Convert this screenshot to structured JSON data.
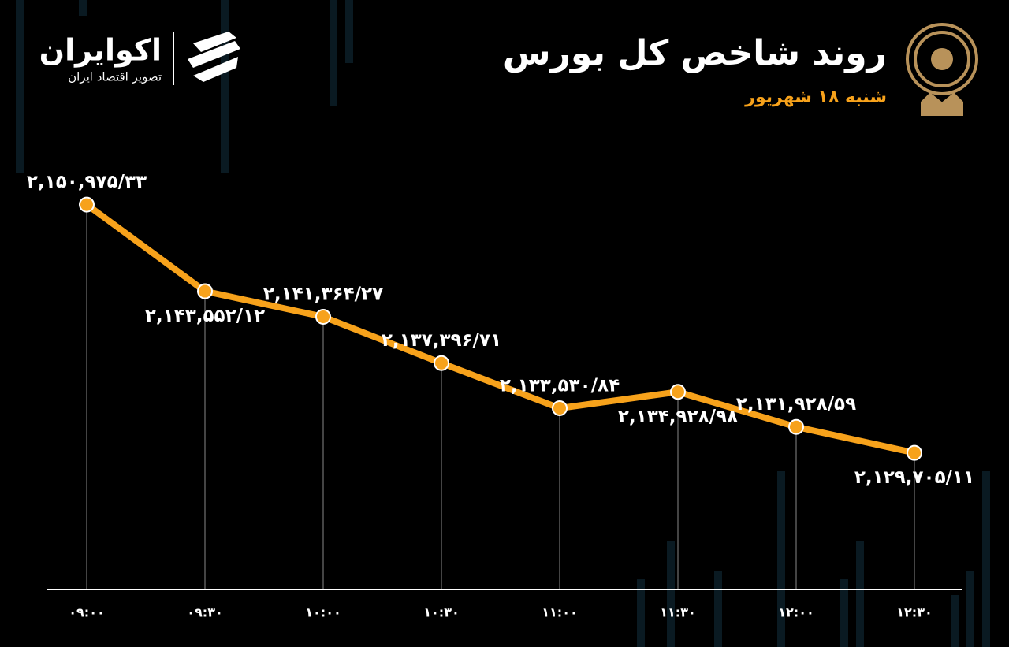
{
  "chart_data": {
    "type": "line",
    "title": "روند شاخص کل بورس",
    "subtitle": "شنبه ۱۸ شهریور",
    "brand": "اکوایران",
    "brand_tagline": "تصویر اقتصاد ایران",
    "categories": [
      "۰۹:۰۰",
      "۰۹:۳۰",
      "۱۰:۰۰",
      "۱۰:۳۰",
      "۱۱:۰۰",
      "۱۱:۳۰",
      "۱۲:۰۰",
      "۱۲:۳۰"
    ],
    "values": [
      2150975.33,
      2143552.12,
      2141364.27,
      2137396.71,
      2133530.84,
      2134928.98,
      2131928.59,
      2129705.11
    ],
    "value_labels": [
      "۲,۱۵۰,۹۷۵/۳۳",
      "۲,۱۴۳,۵۵۲/۱۲",
      "۲,۱۴۱,۳۶۴/۲۷",
      "۲,۱۳۷,۳۹۶/۷۱",
      "۲,۱۳۳,۵۳۰/۸۴",
      "۲,۱۳۴,۹۲۸/۹۸",
      "۲,۱۳۱,۹۲۸/۵۹",
      "۲,۱۲۹,۷۰۵/۱۱"
    ],
    "color": "#f7a21b",
    "ylim": [
      2118000,
      2155000
    ]
  }
}
